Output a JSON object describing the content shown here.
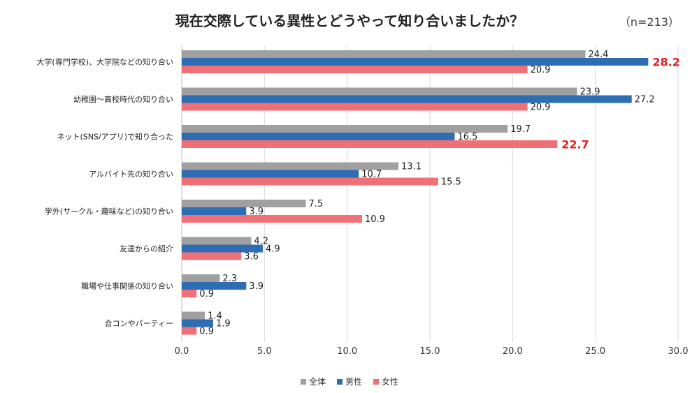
{
  "header": {
    "title": "現在交際している異性とどうやって知り合いましたか？",
    "n_note": "（n=213）"
  },
  "colors": {
    "all": "#a0a0a0",
    "male": "#2e6db4",
    "female": "#f07078",
    "highlight": "#e02020",
    "grid": "#d9d9d9"
  },
  "chart_data": {
    "type": "bar",
    "orientation": "horizontal",
    "categories": [
      "大学(専門学校)、大学院などの知り合い",
      "幼稚園～高校時代の知り合い",
      "ネット(SNS/アプリ)で知り合った",
      "アルバイト先の知り合い",
      "学外(サークル・趣味など)の知り合い",
      "友達からの紹介",
      "職場や仕事関係の知り合い",
      "合コンやパーティー"
    ],
    "series": [
      {
        "name": "全体",
        "key": "all",
        "values": [
          24.4,
          23.9,
          19.7,
          13.1,
          7.5,
          4.2,
          2.3,
          1.4
        ]
      },
      {
        "name": "男性",
        "key": "male",
        "values": [
          28.2,
          27.2,
          16.5,
          10.7,
          3.9,
          4.9,
          3.9,
          1.9
        ]
      },
      {
        "name": "女性",
        "key": "female",
        "values": [
          20.9,
          20.9,
          22.7,
          15.5,
          10.9,
          3.6,
          0.9,
          0.9
        ]
      }
    ],
    "highlighted_labels": [
      {
        "category": 0,
        "series": "male"
      },
      {
        "category": 2,
        "series": "female"
      }
    ],
    "xlim": [
      0,
      30
    ],
    "xticks": [
      "0.0",
      "5.0",
      "10.0",
      "15.0",
      "20.0",
      "25.0",
      "30.0"
    ],
    "grid": true,
    "legend_position": "bottom"
  }
}
